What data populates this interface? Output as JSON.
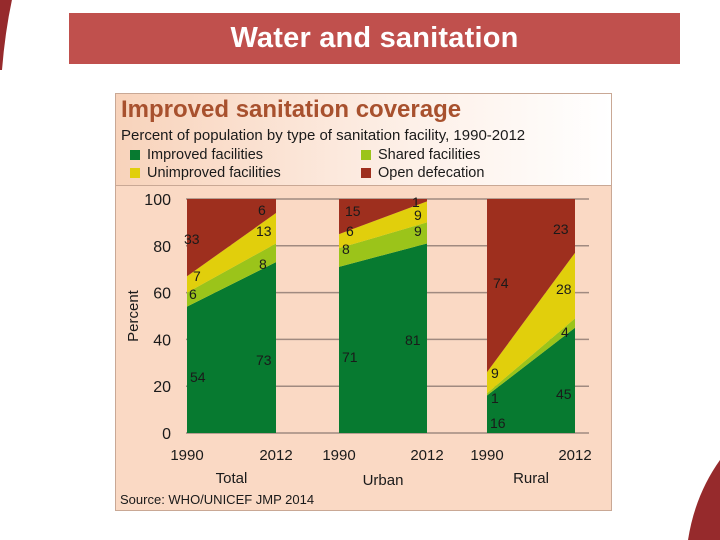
{
  "slide": {
    "title": "Water and sanitation",
    "accent_color": "#c0504d",
    "decor_color": "#962a2c"
  },
  "chart_data": {
    "type": "area",
    "title": "Improved sanitation coverage",
    "subtitle": "Percent of population by type of sanitation facility, 1990-2012",
    "ylabel": "Percent",
    "ylim": [
      0,
      100
    ],
    "yticks": [
      0,
      20,
      40,
      60,
      80,
      100
    ],
    "grid": true,
    "legend": [
      {
        "name": "Improved facilities",
        "color": "#077a30"
      },
      {
        "name": "Shared facilities",
        "color": "#9bc41a"
      },
      {
        "name": "Unimproved facilities",
        "color": "#e1cf0c"
      },
      {
        "name": "Open defecation",
        "color": "#9e2f1e"
      }
    ],
    "legend_placement": "top",
    "series_order": [
      "Improved facilities",
      "Shared facilities",
      "Unimproved facilities",
      "Open defecation"
    ],
    "panels": [
      {
        "name": "Total",
        "x": [
          "1990",
          "2012"
        ],
        "values": {
          "Improved facilities": [
            54,
            73
          ],
          "Shared facilities": [
            6,
            8
          ],
          "Unimproved facilities": [
            7,
            13
          ],
          "Open defecation": [
            33,
            6
          ]
        }
      },
      {
        "name": "Urban",
        "x": [
          "1990",
          "2012"
        ],
        "values": {
          "Improved facilities": [
            71,
            81
          ],
          "Shared facilities": [
            8,
            9
          ],
          "Unimproved facilities": [
            6,
            9
          ],
          "Open defecation": [
            15,
            1
          ]
        }
      },
      {
        "name": "Rural",
        "x": [
          "1990",
          "2012"
        ],
        "values": {
          "Improved facilities": [
            16,
            45
          ],
          "Shared facilities": [
            1,
            4
          ],
          "Unimproved facilities": [
            9,
            28
          ],
          "Open defecation": [
            74,
            23
          ]
        }
      }
    ],
    "source": "Source:  WHO/UNICEF JMP 2014"
  }
}
